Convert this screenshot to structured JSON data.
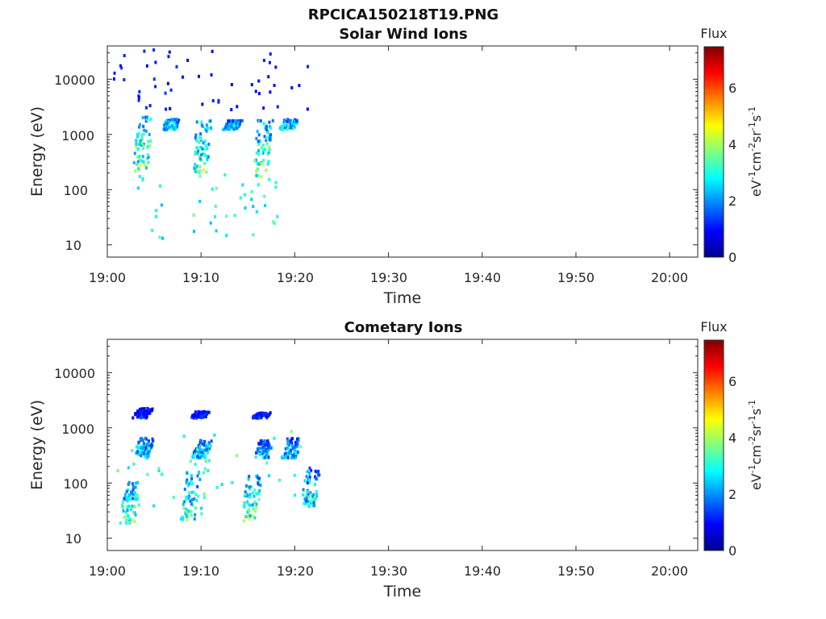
{
  "figure": {
    "file_title": "RPCICA150218T19.PNG"
  },
  "palette": [
    "#00008f",
    "#0000ff",
    "#0080ff",
    "#00ffff",
    "#80ff80",
    "#ffff00",
    "#ff8000",
    "#ff0000",
    "#800000"
  ],
  "chart_data": [
    {
      "type": "heatmap",
      "title": "Solar Wind Ions",
      "xlabel": "Time",
      "ylabel": "Energy (eV)",
      "x_ticks": [
        "19:00",
        "19:10",
        "19:20",
        "19:30",
        "19:40",
        "19:50",
        "20:00"
      ],
      "x_range_minutes": [
        0,
        63
      ],
      "y_scale": "log",
      "y_ticks": [
        "10",
        "100",
        "1000",
        "10000"
      ],
      "y_range": [
        6,
        40000
      ],
      "colorbar": {
        "title": "Flux",
        "unit": "eV-1cm-2sr-1s-1",
        "range": [
          0,
          7.4
        ],
        "ticks": [
          "0",
          "2",
          "4",
          "6"
        ]
      },
      "clusters": [
        {
          "t": 2.9,
          "e_lo": 220,
          "e_hi": 2400,
          "flux_hi": 4.8
        },
        {
          "t": 9.2,
          "e_lo": 220,
          "e_hi": 2000,
          "flux_hi": 4.6
        },
        {
          "t": 15.7,
          "e_lo": 180,
          "e_hi": 2000,
          "flux_hi": 4.6
        },
        {
          "t": 6.0,
          "e_lo": 1300,
          "e_hi": 2000,
          "flux_hi": 3.8
        },
        {
          "t": 12.5,
          "e_lo": 1300,
          "e_hi": 1900,
          "flux_hi": 3.6
        },
        {
          "t": 18.5,
          "e_lo": 1300,
          "e_hi": 2000,
          "flux_hi": 3.8
        }
      ],
      "sparse_high_energy": {
        "t_range": [
          0.5,
          21.5
        ],
        "e_range": [
          3000,
          38000
        ],
        "flux": 1.0
      },
      "sparse_low_energy": {
        "t_range": [
          3.0,
          18.5
        ],
        "e_range": [
          14,
          200
        ],
        "flux": 2.8
      }
    },
    {
      "type": "heatmap",
      "title": "Cometary Ions",
      "xlabel": "Time",
      "ylabel": "Energy (eV)",
      "x_ticks": [
        "19:00",
        "19:10",
        "19:20",
        "19:30",
        "19:40",
        "19:50",
        "20:00"
      ],
      "x_range_minutes": [
        0,
        63
      ],
      "y_scale": "log",
      "y_ticks": [
        "10",
        "100",
        "1000",
        "10000"
      ],
      "y_range": [
        6,
        40000
      ],
      "colorbar": {
        "title": "Flux",
        "unit": "eV-1cm-2sr-1s-1",
        "range": [
          0,
          7.4
        ],
        "ticks": [
          "0",
          "2",
          "4",
          "6"
        ]
      },
      "clusters": [
        {
          "t": 3.0,
          "e_lo": 300,
          "e_hi": 700,
          "flux_hi": 3.4
        },
        {
          "t": 9.2,
          "e_lo": 300,
          "e_hi": 650,
          "flux_hi": 3.2
        },
        {
          "t": 15.8,
          "e_lo": 300,
          "e_hi": 650,
          "flux_hi": 3.2
        },
        {
          "t": 18.8,
          "e_lo": 300,
          "e_hi": 700,
          "flux_hi": 3.0
        },
        {
          "t": 2.9,
          "e_lo": 1600,
          "e_hi": 2400,
          "flux_hi": 1.8
        },
        {
          "t": 9.0,
          "e_lo": 1600,
          "e_hi": 2100,
          "flux_hi": 1.8
        },
        {
          "t": 15.6,
          "e_lo": 1600,
          "e_hi": 2000,
          "flux_hi": 1.8
        },
        {
          "t": 1.5,
          "e_lo": 20,
          "e_hi": 120,
          "flux_hi": 4.4
        },
        {
          "t": 8.0,
          "e_lo": 20,
          "e_hi": 180,
          "flux_hi": 4.2
        },
        {
          "t": 14.5,
          "e_lo": 22,
          "e_hi": 150,
          "flux_hi": 4.6
        },
        {
          "t": 20.8,
          "e_lo": 40,
          "e_hi": 200,
          "flux_hi": 3.6
        }
      ],
      "sparse_mid_energy": {
        "t_range": [
          0.5,
          21.5
        ],
        "e_range": [
          25,
          1000
        ],
        "flux": 3.0
      }
    }
  ]
}
